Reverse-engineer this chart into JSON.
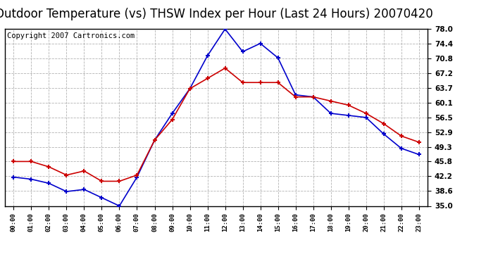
{
  "title": "Outdoor Temperature (vs) THSW Index per Hour (Last 24 Hours) 20070420",
  "copyright": "Copyright 2007 Cartronics.com",
  "hours": [
    "00:00",
    "01:00",
    "02:00",
    "03:00",
    "04:00",
    "05:00",
    "06:00",
    "07:00",
    "08:00",
    "09:00",
    "10:00",
    "11:00",
    "12:00",
    "13:00",
    "14:00",
    "15:00",
    "16:00",
    "17:00",
    "18:00",
    "19:00",
    "20:00",
    "21:00",
    "22:00",
    "23:00"
  ],
  "thsw": [
    42.0,
    41.5,
    40.5,
    38.5,
    39.0,
    37.0,
    35.0,
    42.0,
    51.0,
    57.5,
    63.5,
    71.5,
    78.0,
    72.5,
    74.5,
    71.0,
    62.0,
    61.5,
    57.5,
    57.0,
    56.5,
    52.5,
    49.0,
    47.5
  ],
  "temp": [
    45.8,
    45.8,
    44.5,
    42.5,
    43.5,
    41.0,
    41.0,
    42.5,
    51.0,
    56.0,
    63.5,
    66.0,
    68.5,
    65.0,
    65.0,
    65.0,
    61.5,
    61.5,
    60.5,
    59.5,
    57.5,
    55.0,
    52.0,
    50.5
  ],
  "ylim": [
    35.0,
    78.0
  ],
  "yticks": [
    35.0,
    38.6,
    42.2,
    45.8,
    49.3,
    52.9,
    56.5,
    60.1,
    63.7,
    67.2,
    70.8,
    74.4,
    78.0
  ],
  "blue_color": "#0000cc",
  "red_color": "#cc0000",
  "bg_color": "#ffffff",
  "grid_color": "#aaaaaa",
  "title_fontsize": 12,
  "copyright_fontsize": 7.5
}
